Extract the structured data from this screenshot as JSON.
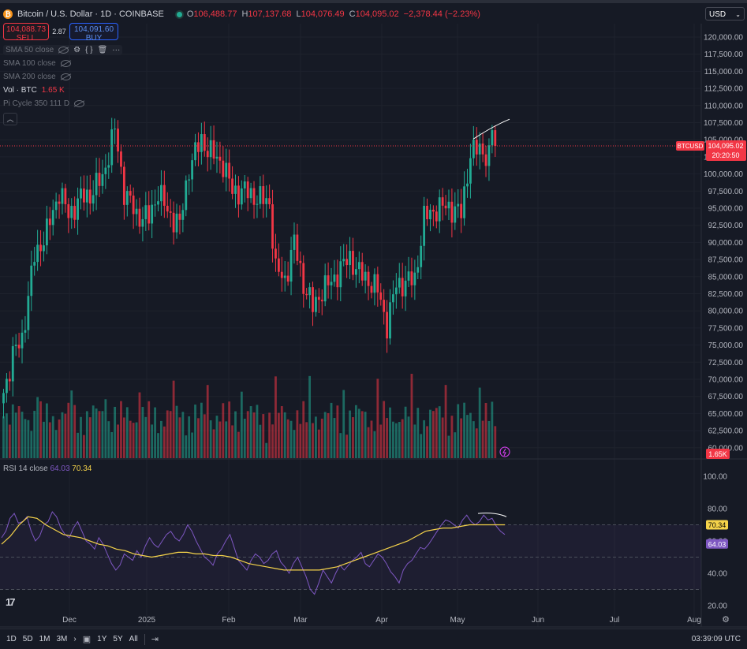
{
  "header": {
    "symbol": "Bitcoin / U.S. Dollar · 1D · COINBASE",
    "o_label": "O",
    "o": "106,488.77",
    "h_label": "H",
    "h": "107,137.68",
    "l_label": "L",
    "l": "104,076.49",
    "c_label": "C",
    "c": "104,095.02",
    "change": "−2,378.44 (−2.23%)"
  },
  "trade": {
    "sell_price": "104,088.73",
    "sell_label": "SELL",
    "spread": "2.87",
    "buy_price": "104,091.60",
    "buy_label": "BUY"
  },
  "indicators": [
    {
      "label": "SMA 50 close"
    },
    {
      "label": "SMA 100 close"
    },
    {
      "label": "SMA 200 close"
    },
    {
      "label": "Vol · BTC",
      "value": "1.65 K"
    },
    {
      "label": "Pi Cycle 350 111 D"
    }
  ],
  "rsi": {
    "label": "RSI 14 close",
    "value": "64.03",
    "ma_value": "70.34"
  },
  "currency": "USD",
  "bottom_bar": {
    "timeframes": [
      "1D",
      "5D",
      "1M",
      "3M",
      "1Y",
      "5Y",
      "All"
    ],
    "time": "03:39:09 UTC"
  },
  "colors": {
    "up": "#22ab94",
    "down": "#f23645",
    "rsi": "#7e57c2",
    "rsi_ma": "#f5d34a",
    "background": "#161a25"
  },
  "chart_data": [
    {
      "type": "candlestick",
      "title": "Bitcoin / U.S. Dollar · 1D · COINBASE",
      "ylim": [
        57500,
        122500
      ],
      "y_ticks": [
        "120,000.00",
        "117,500.00",
        "115,000.00",
        "112,500.00",
        "110,000.00",
        "107,500.00",
        "105,000.00",
        "102,500.00",
        "100,000.00",
        "97,500.00",
        "95,000.00",
        "92,500.00",
        "90,000.00",
        "87,500.00",
        "85,000.00",
        "82,500.00",
        "80,000.00",
        "77,500.00",
        "75,000.00",
        "72,500.00",
        "70,000.00",
        "67,500.00",
        "65,000.00",
        "62,500.00",
        "60,000.00"
      ],
      "x_ticks": [
        "Dec",
        "2025",
        "Feb",
        "Mar",
        "Apr",
        "May",
        "Jun",
        "Jul",
        "Aug"
      ],
      "last_price_label": "BTCUSD",
      "last_price": "104,095.02",
      "countdown": "20:20:50",
      "volume_label": "1.65K",
      "anchors": [
        {
          "d": 0,
          "p": 68000
        },
        {
          "d": 3,
          "p": 73500
        },
        {
          "d": 6,
          "p": 76000
        },
        {
          "d": 10,
          "p": 88000
        },
        {
          "d": 14,
          "p": 91500
        },
        {
          "d": 18,
          "p": 97500
        },
        {
          "d": 21,
          "p": 94000
        },
        {
          "d": 25,
          "p": 96500
        },
        {
          "d": 28,
          "p": 97000
        },
        {
          "d": 32,
          "p": 99500
        },
        {
          "d": 36,
          "p": 106500
        },
        {
          "d": 39,
          "p": 97500
        },
        {
          "d": 43,
          "p": 94000
        },
        {
          "d": 47,
          "p": 93500
        },
        {
          "d": 50,
          "p": 97500
        },
        {
          "d": 53,
          "p": 94500
        },
        {
          "d": 57,
          "p": 92500
        },
        {
          "d": 60,
          "p": 101000
        },
        {
          "d": 64,
          "p": 105000
        },
        {
          "d": 67,
          "p": 103000
        },
        {
          "d": 71,
          "p": 101500
        },
        {
          "d": 74,
          "p": 97500
        },
        {
          "d": 78,
          "p": 97500
        },
        {
          "d": 82,
          "p": 96500
        },
        {
          "d": 86,
          "p": 95800
        },
        {
          "d": 88,
          "p": 86000
        },
        {
          "d": 91,
          "p": 84500
        },
        {
          "d": 94,
          "p": 90000
        },
        {
          "d": 97,
          "p": 84000
        },
        {
          "d": 100,
          "p": 80500
        },
        {
          "d": 103,
          "p": 83000
        },
        {
          "d": 106,
          "p": 84200
        },
        {
          "d": 109,
          "p": 86200
        },
        {
          "d": 112,
          "p": 87800
        },
        {
          "d": 115,
          "p": 85500
        },
        {
          "d": 118,
          "p": 84500
        },
        {
          "d": 121,
          "p": 83000
        },
        {
          "d": 124,
          "p": 78000
        },
        {
          "d": 127,
          "p": 83800
        },
        {
          "d": 130,
          "p": 84200
        },
        {
          "d": 133,
          "p": 84600
        },
        {
          "d": 136,
          "p": 93500
        },
        {
          "d": 140,
          "p": 95000
        },
        {
          "d": 144,
          "p": 95200
        },
        {
          "d": 148,
          "p": 94200
        },
        {
          "d": 151,
          "p": 103000
        },
        {
          "d": 154,
          "p": 103700
        },
        {
          "d": 157,
          "p": 102500
        },
        {
          "d": 158,
          "p": 106400
        },
        {
          "d": 159,
          "p": 104095
        }
      ],
      "volume_bars": 160
    },
    {
      "type": "line",
      "title": "RSI 14 close",
      "ylim": [
        20,
        100
      ],
      "y_ticks": [
        "100.00",
        "80.00",
        "60.00",
        "40.00",
        "20.00"
      ],
      "bands": [
        30,
        50,
        70
      ],
      "series": [
        {
          "name": "RSI",
          "values": [
            62,
            66,
            74,
            77,
            71,
            72,
            75,
            66,
            60,
            63,
            70,
            72,
            78,
            75,
            68,
            64,
            62,
            68,
            72,
            66,
            60,
            58,
            55,
            62,
            58,
            52,
            46,
            42,
            45,
            52,
            50,
            48,
            54,
            50,
            57,
            62,
            58,
            56,
            60,
            64,
            66,
            62,
            60,
            64,
            70,
            66,
            60,
            55,
            50,
            48,
            45,
            52,
            55,
            60,
            64,
            56,
            48,
            45,
            42,
            48,
            52,
            50,
            46,
            48,
            52,
            54,
            47,
            44,
            40,
            46,
            50,
            44,
            38,
            30,
            27,
            34,
            42,
            38,
            34,
            40,
            45,
            42,
            45,
            48,
            50,
            53,
            46,
            44,
            48,
            52,
            50,
            46,
            41,
            38,
            34,
            42,
            46,
            48,
            52,
            56,
            55,
            58,
            62,
            66,
            70,
            73,
            72,
            70,
            68,
            73,
            76,
            72,
            70,
            72,
            76,
            73,
            74,
            69,
            66,
            64
          ]
        },
        {
          "name": "RSI MA",
          "values": [
            58,
            63,
            70,
            75,
            74,
            70,
            67,
            64,
            63,
            62,
            60,
            58,
            57,
            55,
            54,
            52,
            51,
            50,
            51,
            52,
            53,
            53,
            52,
            52,
            51,
            51,
            50,
            48,
            46,
            45,
            44,
            43,
            42,
            42,
            42,
            42,
            42,
            43,
            44,
            46,
            48,
            50,
            52,
            54,
            56,
            58,
            60,
            63,
            66,
            67,
            68,
            68,
            69,
            70,
            70,
            70,
            70,
            70
          ]
        }
      ]
    }
  ]
}
